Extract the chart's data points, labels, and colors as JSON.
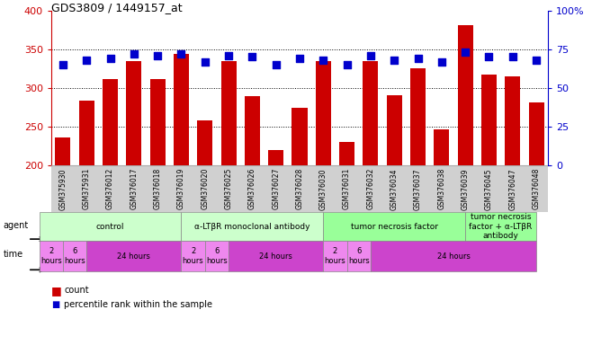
{
  "title": "GDS3809 / 1449157_at",
  "samples": [
    "GSM375930",
    "GSM375931",
    "GSM376012",
    "GSM376017",
    "GSM376018",
    "GSM376019",
    "GSM376020",
    "GSM376025",
    "GSM376026",
    "GSM376027",
    "GSM376028",
    "GSM376030",
    "GSM376031",
    "GSM376032",
    "GSM376034",
    "GSM376037",
    "GSM376038",
    "GSM376039",
    "GSM376045",
    "GSM376047",
    "GSM376048"
  ],
  "counts": [
    236,
    284,
    311,
    335,
    311,
    344,
    258,
    335,
    290,
    220,
    275,
    335,
    230,
    335,
    291,
    325,
    247,
    381,
    317,
    315,
    281
  ],
  "percentiles": [
    65,
    68,
    69,
    72,
    71,
    72,
    67,
    71,
    70,
    65,
    69,
    68,
    65,
    71,
    68,
    69,
    67,
    73,
    70,
    70,
    68
  ],
  "ylim_left": [
    200,
    400
  ],
  "ylim_right": [
    0,
    100
  ],
  "yticks_left": [
    200,
    250,
    300,
    350,
    400
  ],
  "yticks_right": [
    0,
    25,
    50,
    75,
    100
  ],
  "bar_color": "#cc0000",
  "dot_color": "#0000cc",
  "agent_groups": [
    {
      "label": "control",
      "start": 0,
      "end": 5,
      "color": "#ccffcc"
    },
    {
      "label": "α-LTβR monoclonal antibody",
      "start": 6,
      "end": 11,
      "color": "#ccffcc"
    },
    {
      "label": "tumor necrosis factor",
      "start": 12,
      "end": 17,
      "color": "#99ff99"
    },
    {
      "label": "tumor necrosis\nfactor + α-LTβR\nantibody",
      "start": 18,
      "end": 20,
      "color": "#99ff99"
    }
  ],
  "time_groups": [
    {
      "label": "2\nhours",
      "start": 0,
      "end": 0,
      "color": "#ee88ee"
    },
    {
      "label": "6\nhours",
      "start": 1,
      "end": 1,
      "color": "#ee88ee"
    },
    {
      "label": "24 hours",
      "start": 2,
      "end": 5,
      "color": "#cc44cc"
    },
    {
      "label": "2\nhours",
      "start": 6,
      "end": 6,
      "color": "#ee88ee"
    },
    {
      "label": "6\nhours",
      "start": 7,
      "end": 7,
      "color": "#ee88ee"
    },
    {
      "label": "24 hours",
      "start": 8,
      "end": 11,
      "color": "#cc44cc"
    },
    {
      "label": "2\nhours",
      "start": 12,
      "end": 12,
      "color": "#ee88ee"
    },
    {
      "label": "6\nhours",
      "start": 13,
      "end": 13,
      "color": "#ee88ee"
    },
    {
      "label": "24 hours",
      "start": 14,
      "end": 20,
      "color": "#cc44cc"
    }
  ],
  "left_axis_color": "#cc0000",
  "right_axis_color": "#0000cc",
  "grid_yticks": [
    250,
    300,
    350
  ],
  "legend_items": [
    {
      "color": "#cc0000",
      "label": "count"
    },
    {
      "color": "#0000cc",
      "label": "percentile rank within the sample"
    }
  ]
}
